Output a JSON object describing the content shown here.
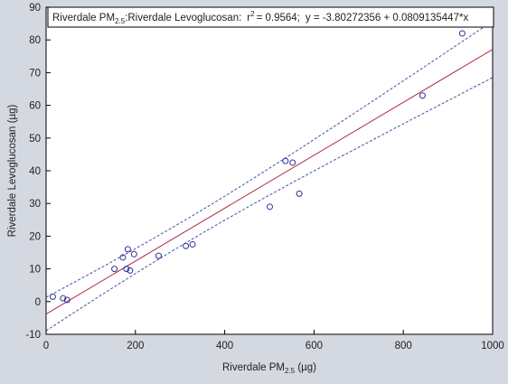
{
  "chart_data": {
    "type": "scatter",
    "title": {
      "series_label_prefix": "Riverdale PM",
      "series_label_sub": "2.5",
      "series_label_suffix": ":Riverdale Levoglucosan:",
      "r_label": "r",
      "r_sup": "2",
      "r_value": "= 0.9564;",
      "equation": "y = -3.80272356 + 0.0809135447*x"
    },
    "xlabel": {
      "prefix": "Riverdale PM",
      "sub": "2.5",
      "suffix": " (µg)"
    },
    "ylabel": "Riverdale Levoglucosan (µg)",
    "xlim": [
      0,
      1000
    ],
    "ylim": [
      -10,
      90
    ],
    "xticks": [
      0,
      200,
      400,
      600,
      800,
      1000
    ],
    "yticks": [
      -10,
      0,
      10,
      20,
      30,
      40,
      50,
      60,
      70,
      80,
      90
    ],
    "grid": false,
    "regression": {
      "intercept": -3.80272356,
      "slope": 0.0809135447
    },
    "confidence_band_offset": 6,
    "points": [
      {
        "x": 15,
        "y": 1.5
      },
      {
        "x": 38,
        "y": 1.0
      },
      {
        "x": 47,
        "y": 0.5
      },
      {
        "x": 153,
        "y": 10
      },
      {
        "x": 172,
        "y": 13.5
      },
      {
        "x": 180,
        "y": 10
      },
      {
        "x": 183,
        "y": 16
      },
      {
        "x": 188,
        "y": 9.5
      },
      {
        "x": 197,
        "y": 14.5
      },
      {
        "x": 252,
        "y": 14
      },
      {
        "x": 313,
        "y": 17
      },
      {
        "x": 328,
        "y": 17.5
      },
      {
        "x": 501,
        "y": 29
      },
      {
        "x": 536,
        "y": 43
      },
      {
        "x": 552,
        "y": 42.5
      },
      {
        "x": 567,
        "y": 33
      },
      {
        "x": 843,
        "y": 63
      },
      {
        "x": 932,
        "y": 82
      }
    ],
    "colors": {
      "line": "#b0284a",
      "band": "#4b4fa0",
      "marker": "#2b2f9a",
      "background": "#d4d8e0"
    }
  }
}
